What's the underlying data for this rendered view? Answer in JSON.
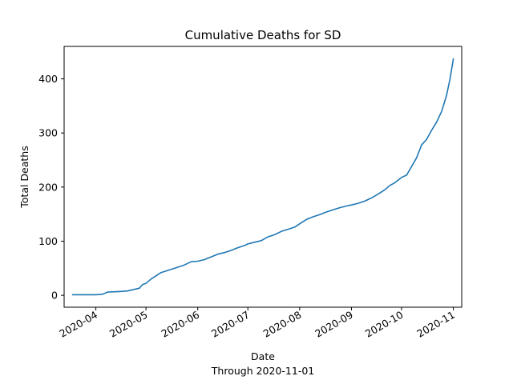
{
  "chart_data": {
    "type": "line",
    "title": "Cumulative Deaths for SD",
    "xlabel": "Date",
    "xlabel_note": "Through 2020-11-01",
    "ylabel": "Total Deaths",
    "grid": false,
    "legend": "none",
    "line_color": "#1f77b4",
    "xlim": [
      "2020-03-13",
      "2020-11-06"
    ],
    "ylim": [
      -22,
      460
    ],
    "x_ticks": [
      "2020-04-01",
      "2020-05-01",
      "2020-06-01",
      "2020-07-01",
      "2020-08-01",
      "2020-09-01",
      "2020-10-01",
      "2020-11-01"
    ],
    "x_tick_labels": [
      "2020-04",
      "2020-05",
      "2020-06",
      "2020-07",
      "2020-08",
      "2020-09",
      "2020-10",
      "2020-11"
    ],
    "y_ticks": [
      0,
      100,
      200,
      300,
      400
    ],
    "y_tick_labels": [
      "0",
      "100",
      "200",
      "300",
      "400"
    ],
    "series": [
      {
        "x": [
          "2020-03-18",
          "2020-03-25",
          "2020-04-01",
          "2020-04-05",
          "2020-04-08",
          "2020-04-15",
          "2020-04-20",
          "2020-04-24",
          "2020-04-27",
          "2020-04-29",
          "2020-05-01",
          "2020-05-04",
          "2020-05-07",
          "2020-05-10",
          "2020-05-13",
          "2020-05-16",
          "2020-05-20",
          "2020-05-24",
          "2020-05-28",
          "2020-06-01",
          "2020-06-05",
          "2020-06-09",
          "2020-06-13",
          "2020-06-17",
          "2020-06-21",
          "2020-06-25",
          "2020-06-29",
          "2020-07-01",
          "2020-07-05",
          "2020-07-09",
          "2020-07-13",
          "2020-07-17",
          "2020-07-21",
          "2020-07-25",
          "2020-07-29",
          "2020-08-01",
          "2020-08-05",
          "2020-08-09",
          "2020-08-13",
          "2020-08-17",
          "2020-08-21",
          "2020-08-25",
          "2020-08-29",
          "2020-09-01",
          "2020-09-05",
          "2020-09-09",
          "2020-09-13",
          "2020-09-17",
          "2020-09-21",
          "2020-09-24",
          "2020-09-27",
          "2020-10-01",
          "2020-10-04",
          "2020-10-07",
          "2020-10-10",
          "2020-10-13",
          "2020-10-16",
          "2020-10-19",
          "2020-10-22",
          "2020-10-25",
          "2020-10-28",
          "2020-10-30",
          "2020-11-01"
        ],
        "y": [
          1,
          1,
          1,
          2,
          6,
          7,
          8,
          11,
          13,
          20,
          22,
          30,
          36,
          42,
          45,
          48,
          52,
          56,
          62,
          63,
          66,
          71,
          76,
          79,
          83,
          88,
          92,
          95,
          98,
          101,
          108,
          112,
          118,
          122,
          126,
          132,
          140,
          145,
          149,
          154,
          158,
          162,
          165,
          167,
          170,
          174,
          180,
          187,
          195,
          203,
          208,
          218,
          222,
          238,
          254,
          278,
          288,
          305,
          320,
          340,
          370,
          400,
          437
        ]
      }
    ]
  }
}
